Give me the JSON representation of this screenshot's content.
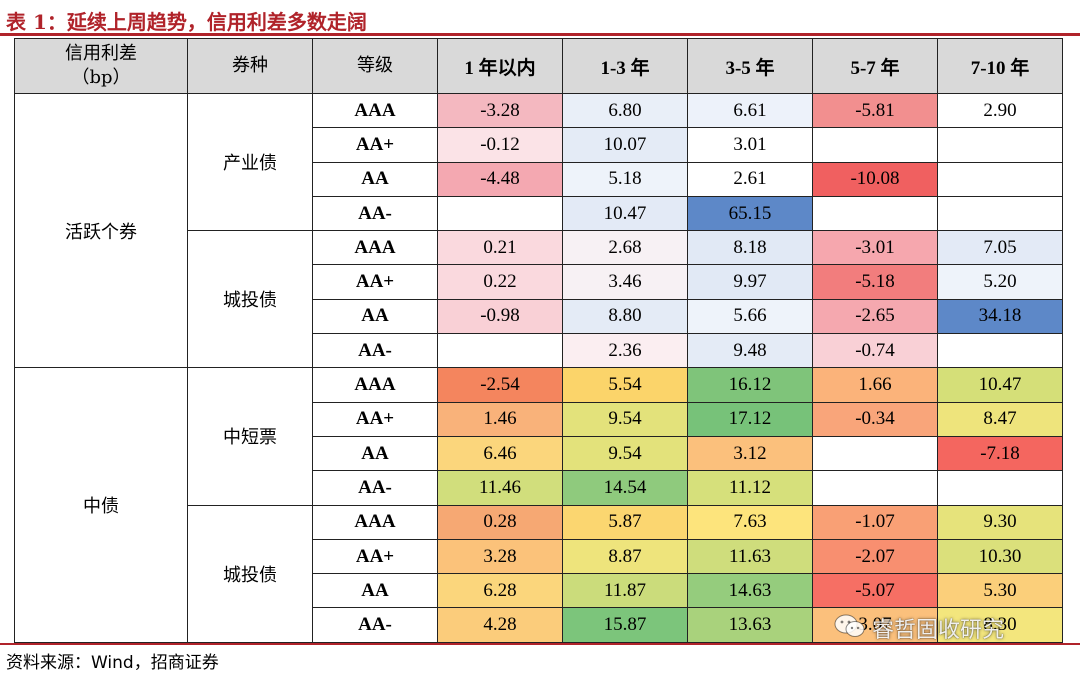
{
  "title": "表 1：延续上周趋势，信用利差多数走阔",
  "headers": {
    "spread": "信用利差\n（bp）",
    "type": "券种",
    "grade": "等级",
    "terms": [
      "1 年以内",
      "1-3 年",
      "3-5 年",
      "5-7 年",
      "7-10 年"
    ]
  },
  "groups": [
    {
      "category": "活跃个券",
      "subgroups": [
        {
          "type": "产业债",
          "rows": [
            {
              "grade": "AAA",
              "values": [
                "-3.28",
                "6.80",
                "6.61",
                "-5.81",
                "2.90"
              ],
              "colors": [
                "#f4b8c0",
                "#e9eff8",
                "#edf2fa",
                "#f28f8f",
                "#ffffff"
              ]
            },
            {
              "grade": "AA+",
              "values": [
                "-0.12",
                "10.07",
                "3.01",
                "",
                ""
              ],
              "colors": [
                "#fbe3e7",
                "#e4ebf6",
                "#ffffff",
                "#ffffff",
                "#ffffff"
              ]
            },
            {
              "grade": "AA",
              "values": [
                "-4.48",
                "5.18",
                "2.61",
                "-10.08",
                ""
              ],
              "colors": [
                "#f4a8b1",
                "#eef3fa",
                "#ffffff",
                "#f06060",
                "#ffffff"
              ]
            },
            {
              "grade": "AA-",
              "values": [
                "",
                "10.47",
                "65.15",
                "",
                ""
              ],
              "colors": [
                "#ffffff",
                "#e3eaf6",
                "#5d88c8",
                "#ffffff",
                "#ffffff"
              ]
            }
          ]
        },
        {
          "type": "城投债",
          "rows": [
            {
              "grade": "AAA",
              "values": [
                "0.21",
                "2.68",
                "8.18",
                "-3.01",
                "7.05"
              ],
              "colors": [
                "#fad9de",
                "#f7f1f4",
                "#e1e9f5",
                "#f6a7ae",
                "#e3eaf6"
              ]
            },
            {
              "grade": "AA+",
              "values": [
                "0.22",
                "3.46",
                "9.97",
                "-5.18",
                "5.20"
              ],
              "colors": [
                "#fad9de",
                "#f7f1f4",
                "#e1e9f5",
                "#f27d7d",
                "#eef3fa"
              ]
            },
            {
              "grade": "AA",
              "values": [
                "-0.98",
                "8.80",
                "5.66",
                "-2.65",
                "34.18"
              ],
              "colors": [
                "#f9d0d6",
                "#e4ebf6",
                "#eef3fa",
                "#f5a8af",
                "#5d88c8"
              ]
            },
            {
              "grade": "AA-",
              "values": [
                "",
                "2.36",
                "9.48",
                "-0.74",
                ""
              ],
              "colors": [
                "#ffffff",
                "#fbeef1",
                "#e4ebf6",
                "#f9d0d6",
                "#ffffff"
              ]
            }
          ]
        }
      ]
    },
    {
      "category": "中债",
      "subgroups": [
        {
          "type": "中短票",
          "rows": [
            {
              "grade": "AAA",
              "values": [
                "-2.54",
                "5.54",
                "16.12",
                "1.66",
                "10.47"
              ],
              "colors": [
                "#f4855e",
                "#fbd46a",
                "#7fc47a",
                "#fbb37a",
                "#d5df78"
              ]
            },
            {
              "grade": "AA+",
              "values": [
                "1.46",
                "9.54",
                "17.12",
                "-0.34",
                "8.47"
              ],
              "colors": [
                "#f9b27a",
                "#e3e27b",
                "#77c279",
                "#f9a57a",
                "#eee47c"
              ]
            },
            {
              "grade": "AA",
              "values": [
                "6.46",
                "9.54",
                "3.12",
                "",
                "-7.18"
              ],
              "colors": [
                "#fbd67c",
                "#e3e27b",
                "#fbc07c",
                "#ffffff",
                "#f4665f"
              ]
            },
            {
              "grade": "AA-",
              "values": [
                "11.46",
                "14.54",
                "11.12",
                "",
                ""
              ],
              "colors": [
                "#d1de7c",
                "#8fca7d",
                "#d6e07b",
                "#ffffff",
                "#ffffff"
              ]
            }
          ]
        },
        {
          "type": "城投债",
          "rows": [
            {
              "grade": "AAA",
              "values": [
                "0.28",
                "5.87",
                "7.63",
                "-1.07",
                "9.30"
              ],
              "colors": [
                "#f6a873",
                "#fbd670",
                "#fde47c",
                "#f9a075",
                "#e6e37b"
              ]
            },
            {
              "grade": "AA+",
              "values": [
                "3.28",
                "8.87",
                "11.63",
                "-2.07",
                "10.30"
              ],
              "colors": [
                "#fbc27a",
                "#eee47c",
                "#cfdd7c",
                "#f88f70",
                "#dbe07b"
              ]
            },
            {
              "grade": "AA",
              "values": [
                "6.28",
                "11.87",
                "14.63",
                "-5.07",
                "5.30"
              ],
              "colors": [
                "#fbd67c",
                "#cbdc7b",
                "#95cc7d",
                "#f66f64",
                "#fbcf7a"
              ]
            },
            {
              "grade": "AA-",
              "values": [
                "4.28",
                "15.87",
                "13.63",
                "3.07",
                "8.30"
              ],
              "colors": [
                "#fbcc7b",
                "#7cc57b",
                "#a9d27c",
                "#fbc07c",
                "#f3e67d"
              ]
            }
          ]
        }
      ]
    }
  ],
  "watermark": "睿哲固收研究",
  "source": "资料来源：Wind，招商证券"
}
